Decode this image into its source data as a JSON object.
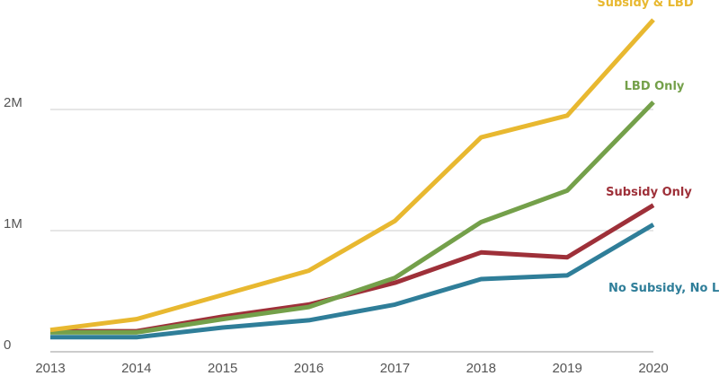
{
  "chart_data": {
    "type": "line",
    "title": "",
    "xlabel": "",
    "ylabel": "",
    "x": [
      "2013",
      "2014",
      "2015",
      "2016",
      "2017",
      "2018",
      "2019",
      "2020"
    ],
    "ylim": [
      0,
      2800000
    ],
    "yticks": [
      {
        "value": 0,
        "label": "0"
      },
      {
        "value": 1000000,
        "label": "1M"
      },
      {
        "value": 2000000,
        "label": "2M"
      }
    ],
    "grid": true,
    "legend": "direct labels at line ends",
    "series": [
      {
        "name": "Subsidy & LBD",
        "color": "#e8b830",
        "values": [
          180000,
          270000,
          470000,
          670000,
          1080000,
          1770000,
          1950000,
          2740000
        ]
      },
      {
        "name": "LBD Only",
        "color": "#74a04a",
        "values": [
          160000,
          160000,
          270000,
          370000,
          610000,
          1070000,
          1330000,
          2060000
        ]
      },
      {
        "name": "Subsidy Only",
        "color": "#9e3039",
        "values": [
          170000,
          170000,
          290000,
          390000,
          570000,
          820000,
          780000,
          1210000
        ]
      },
      {
        "name": "No Subsidy, No LBD",
        "color": "#2f7e99",
        "values": [
          120000,
          120000,
          200000,
          260000,
          390000,
          600000,
          630000,
          1050000
        ]
      }
    ]
  }
}
